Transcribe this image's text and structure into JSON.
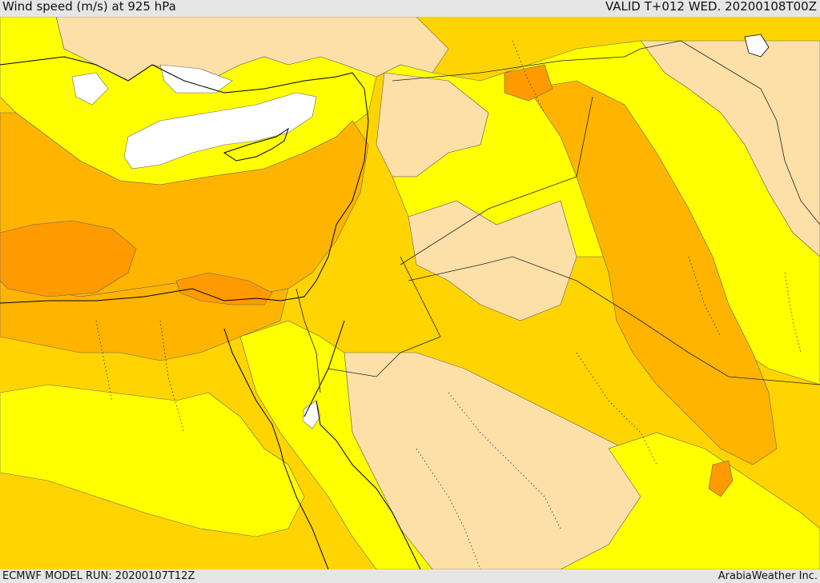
{
  "header": {
    "title": "Wind speed (m/s) at 925 hPa",
    "valid": "VALID T+012 WED. 20200108T00Z"
  },
  "footer": {
    "model_run": "ECMWF MODEL RUN: 20200107T12Z",
    "credit": "ArabiaWeather Inc."
  },
  "map": {
    "colors": {
      "white": "#ffffff",
      "pale": "#fde0a8",
      "yellow": "#ffff00",
      "gold": "#ffd400",
      "orange": "#ffb400",
      "dark_orange": "#ff9a00",
      "coast": "#000000",
      "contour": "#666666"
    }
  }
}
